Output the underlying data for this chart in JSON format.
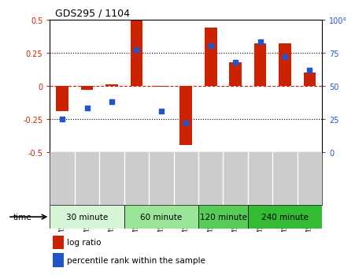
{
  "title": "GDS295 / 1104",
  "samples": [
    "GSM5474",
    "GSM5475",
    "GSM5476",
    "GSM5477",
    "GSM5478",
    "GSM5479",
    "GSM5480",
    "GSM5481",
    "GSM5482",
    "GSM5483",
    "GSM5484"
  ],
  "log_ratio": [
    -0.19,
    -0.03,
    0.01,
    0.49,
    -0.01,
    -0.45,
    0.44,
    0.18,
    0.32,
    0.32,
    0.1
  ],
  "percentile": [
    25,
    33,
    38,
    77,
    31,
    22,
    80,
    68,
    83,
    72,
    62
  ],
  "bar_color": "#cc2200",
  "dot_color": "#2255cc",
  "ylim_left": [
    -0.5,
    0.5
  ],
  "ylim_right": [
    0,
    100
  ],
  "yticks_left": [
    -0.5,
    -0.25,
    0,
    0.25,
    0.5
  ],
  "yticks_right": [
    0,
    25,
    50,
    75,
    100
  ],
  "hlines_dotted": [
    0.25,
    -0.25
  ],
  "hline_dashed": 0,
  "groups": [
    {
      "label": "30 minute",
      "start": 0,
      "end": 3,
      "color": "#d6f5d6"
    },
    {
      "label": "60 minute",
      "start": 3,
      "end": 6,
      "color": "#99e699"
    },
    {
      "label": "120 minute",
      "start": 6,
      "end": 8,
      "color": "#55cc55"
    },
    {
      "label": "240 minute",
      "start": 8,
      "end": 11,
      "color": "#33bb33"
    }
  ],
  "time_label": "time",
  "legend_bar_label": "log ratio",
  "legend_dot_label": "percentile rank within the sample",
  "bg_color": "#ffffff",
  "plot_bg_color": "#ffffff",
  "tick_color_left": "#cc2200",
  "tick_color_right": "#2255cc",
  "bar_width": 0.5,
  "sample_bg_color": "#cccccc",
  "sample_border_color": "#888888"
}
